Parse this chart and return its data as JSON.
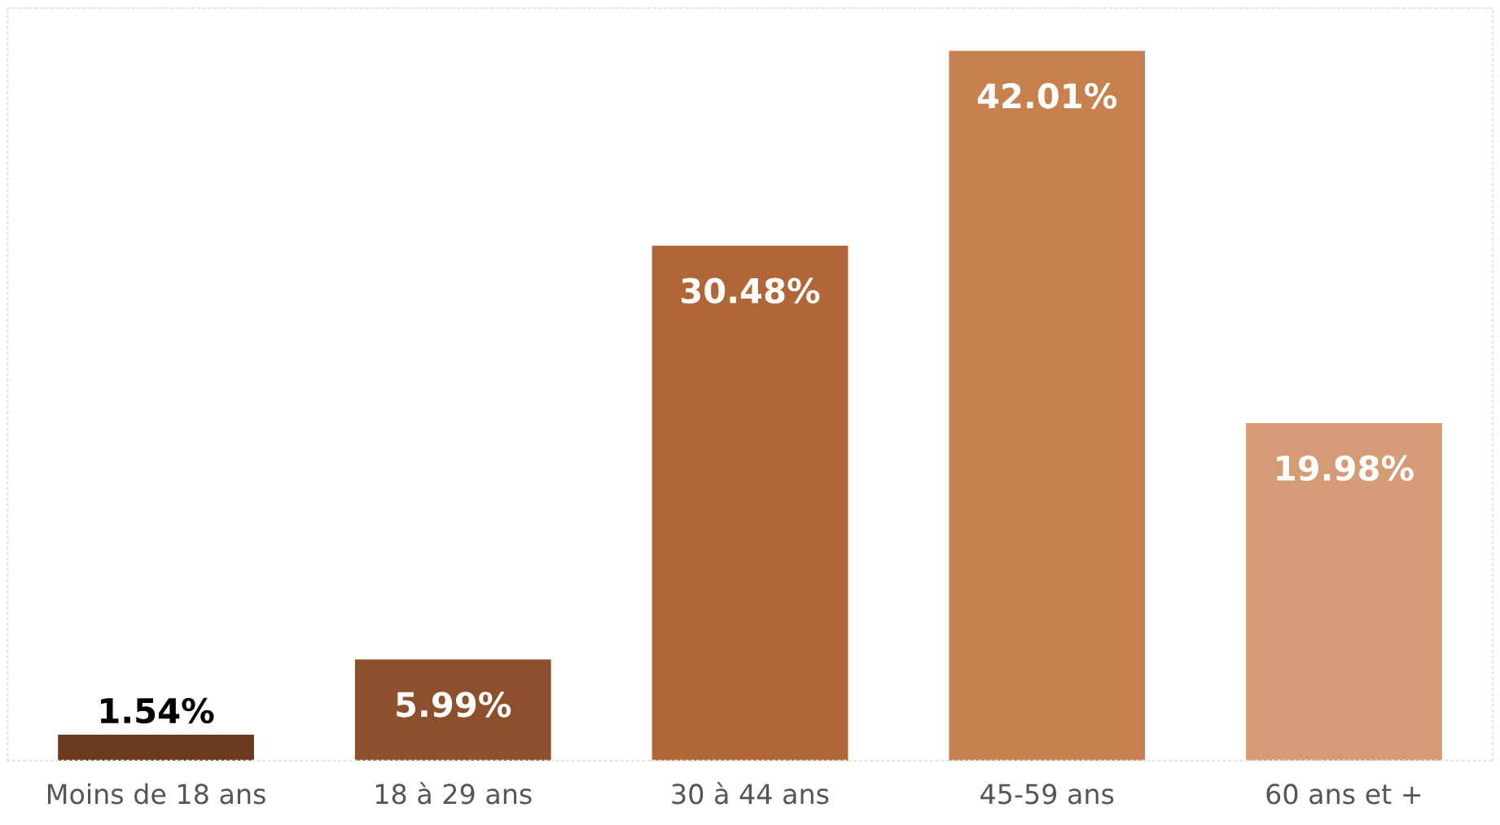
{
  "chart_data": {
    "type": "bar",
    "categories": [
      "Moins de 18 ans",
      "18 à 29 ans",
      "30 à 44 ans",
      "45-59 ans",
      "60 ans et +"
    ],
    "values": [
      1.54,
      5.99,
      30.48,
      42.01,
      19.98
    ],
    "colors": [
      "#6b3a1e",
      "#8c512c",
      "#b06636",
      "#c8804e",
      "#d59b74"
    ],
    "value_labels": [
      "1.54%",
      "5.99%",
      "30.48%",
      "42.01%",
      "19.98%"
    ],
    "grid": false,
    "legend": false
  }
}
